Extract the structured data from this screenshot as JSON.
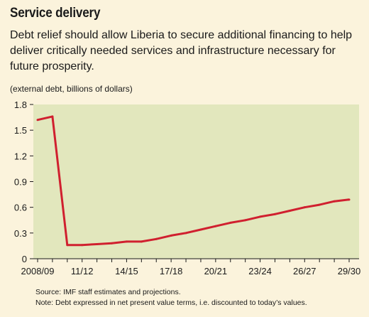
{
  "header": {
    "title": "Service delivery",
    "subtitle": "Debt relief should allow Liberia to secure additional financing to help deliver critically needed services and infrastructure necessary for future prosperity.",
    "unit_note": "(external debt, billions of dollars)"
  },
  "footer": {
    "source": "Source: IMF staff estimates and projections.",
    "note": "Note: Debt expressed in net present value terms, i.e. discounted to today’s values."
  },
  "colors": {
    "background": "#fbf3dc",
    "plot_area": "#e2e7bd",
    "line": "#d0202f"
  },
  "chart_data": {
    "type": "line",
    "title": "",
    "xlabel": "",
    "ylabel": "(external debt, billions of dollars)",
    "ylim": [
      0,
      1.8
    ],
    "yticks": [
      0,
      0.3,
      0.6,
      0.9,
      1.2,
      1.5,
      1.8
    ],
    "ytick_labels": [
      "0",
      "0.3",
      "0.6",
      "0.9",
      "1.2",
      "1.5",
      "1.8"
    ],
    "x": [
      "2008/09",
      "09/10",
      "10/11",
      "11/12",
      "12/13",
      "13/14",
      "14/15",
      "15/16",
      "16/17",
      "17/18",
      "18/19",
      "19/20",
      "20/21",
      "21/22",
      "22/23",
      "23/24",
      "24/25",
      "25/26",
      "26/27",
      "27/28",
      "28/29",
      "29/30"
    ],
    "xtick_labels": [
      {
        "index": 0,
        "label": "2008/09"
      },
      {
        "index": 3,
        "label": "11/12"
      },
      {
        "index": 6,
        "label": "14/15"
      },
      {
        "index": 9,
        "label": "17/18"
      },
      {
        "index": 12,
        "label": "20/21"
      },
      {
        "index": 15,
        "label": "23/24"
      },
      {
        "index": 18,
        "label": "26/27"
      },
      {
        "index": 21,
        "label": "29/30"
      }
    ],
    "series": [
      {
        "name": "",
        "values": [
          1.62,
          1.66,
          0.16,
          0.16,
          0.17,
          0.18,
          0.2,
          0.2,
          0.23,
          0.27,
          0.3,
          0.34,
          0.38,
          0.42,
          0.45,
          0.49,
          0.52,
          0.56,
          0.6,
          0.63,
          0.67,
          0.69
        ]
      }
    ],
    "grid": false
  }
}
